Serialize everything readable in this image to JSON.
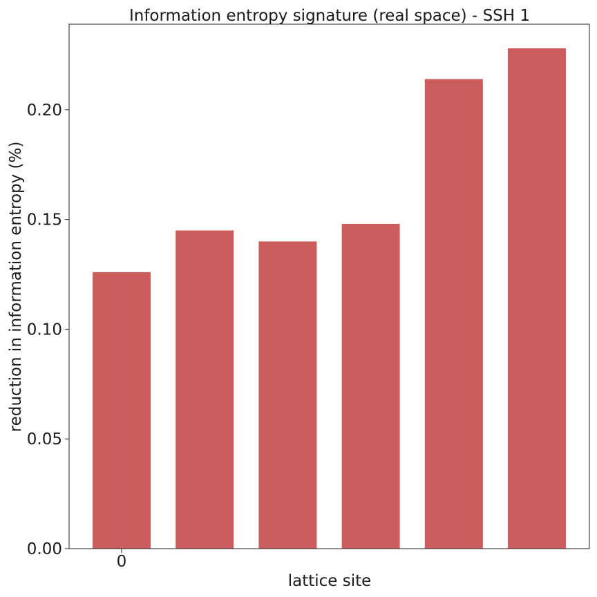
{
  "chart_data": {
    "type": "bar",
    "title": "Information entropy signature (real space) - SSH 1",
    "xlabel": "lattice site",
    "ylabel": "reduction in information entropy (%)",
    "categories": [
      "0",
      "",
      "",
      "",
      "",
      ""
    ],
    "values": [
      0.126,
      0.145,
      0.14,
      0.148,
      0.214,
      0.228
    ],
    "ylim": [
      0,
      0.239
    ],
    "yticks": [
      "0.00",
      "0.05",
      "0.10",
      "0.15",
      "0.20"
    ],
    "ytick_values": [
      0,
      0.05,
      0.1,
      0.15,
      0.2
    ],
    "bar_color": "#cd5c5c",
    "grid": false,
    "legend": "none"
  }
}
